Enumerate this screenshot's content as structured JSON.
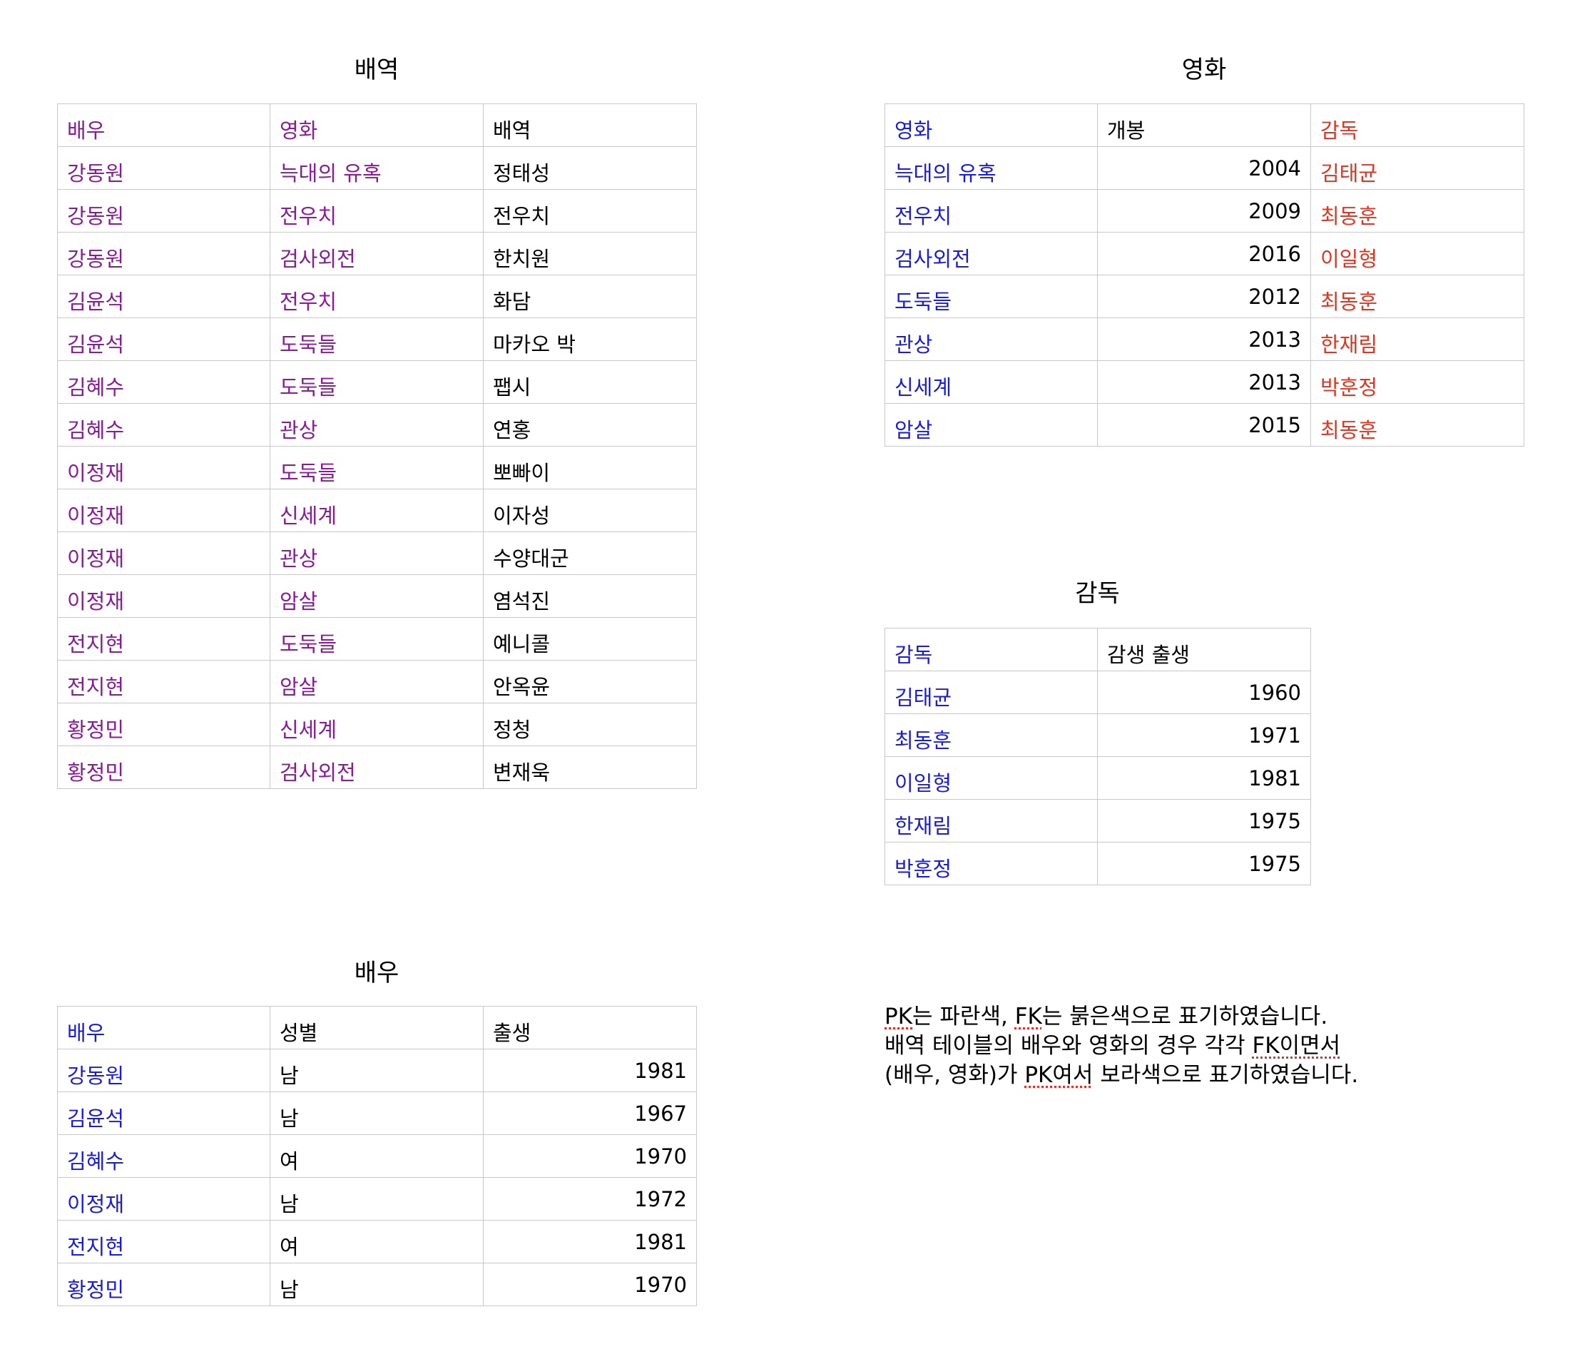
{
  "colors": {
    "pk": "#1a1ae6",
    "fk": "#e8321e",
    "pkfk": "#8a1a9a",
    "border": "#c8c8c8"
  },
  "casting": {
    "title": "배역",
    "headers": [
      "배우",
      "영화",
      "배역"
    ],
    "rows": [
      [
        "강동원",
        "늑대의 유혹",
        "정태성"
      ],
      [
        "강동원",
        "전우치",
        "전우치"
      ],
      [
        "강동원",
        "검사외전",
        "한치원"
      ],
      [
        "김윤석",
        "전우치",
        "화담"
      ],
      [
        "김윤석",
        "도둑들",
        "마카오 박"
      ],
      [
        "김혜수",
        "도둑들",
        "팹시"
      ],
      [
        "김혜수",
        "관상",
        "연홍"
      ],
      [
        "이정재",
        "도둑들",
        "뽀빠이"
      ],
      [
        "이정재",
        "신세계",
        "이자성"
      ],
      [
        "이정재",
        "관상",
        "수양대군"
      ],
      [
        "이정재",
        "암살",
        "염석진"
      ],
      [
        "전지현",
        "도둑들",
        "예니콜"
      ],
      [
        "전지현",
        "암살",
        "안옥윤"
      ],
      [
        "황정민",
        "신세계",
        "정청"
      ],
      [
        "황정민",
        "검사외전",
        "변재욱"
      ]
    ]
  },
  "movie": {
    "title": "영화",
    "headers": [
      "영화",
      "개봉",
      "감독"
    ],
    "rows": [
      [
        "늑대의 유혹",
        "2004",
        "김태균"
      ],
      [
        "전우치",
        "2009",
        "최동훈"
      ],
      [
        "검사외전",
        "2016",
        "이일형"
      ],
      [
        "도둑들",
        "2012",
        "최동훈"
      ],
      [
        "관상",
        "2013",
        "한재림"
      ],
      [
        "신세계",
        "2013",
        "박훈정"
      ],
      [
        "암살",
        "2015",
        "최동훈"
      ]
    ]
  },
  "director": {
    "title": "감독",
    "headers": [
      "감독",
      "감생 출생"
    ],
    "rows": [
      [
        "김태균",
        "1960"
      ],
      [
        "최동훈",
        "1971"
      ],
      [
        "이일형",
        "1981"
      ],
      [
        "한재림",
        "1975"
      ],
      [
        "박훈정",
        "1975"
      ]
    ]
  },
  "actor": {
    "title": "배우",
    "headers": [
      "배우",
      "성별",
      "출생"
    ],
    "rows": [
      [
        "강동원",
        "남",
        "1981"
      ],
      [
        "김윤석",
        "남",
        "1967"
      ],
      [
        "김혜수",
        "여",
        "1970"
      ],
      [
        "이정재",
        "남",
        "1972"
      ],
      [
        "전지현",
        "여",
        "1981"
      ],
      [
        "황정민",
        "남",
        "1970"
      ]
    ]
  },
  "note": {
    "line1_a": "PK",
    "line1_b": "는 파란색, ",
    "line1_c": "FK",
    "line1_d": "는 붉은색으로 표기하였습니다.",
    "line2_a": "배역 테이블의 배우와 영화의 경우 각각 ",
    "line2_b": "FK이면서",
    "line3_a": "(배우, 영화)가 ",
    "line3_b": "PK여서",
    "line3_c": " 보라색으로 표기하였습니다."
  }
}
